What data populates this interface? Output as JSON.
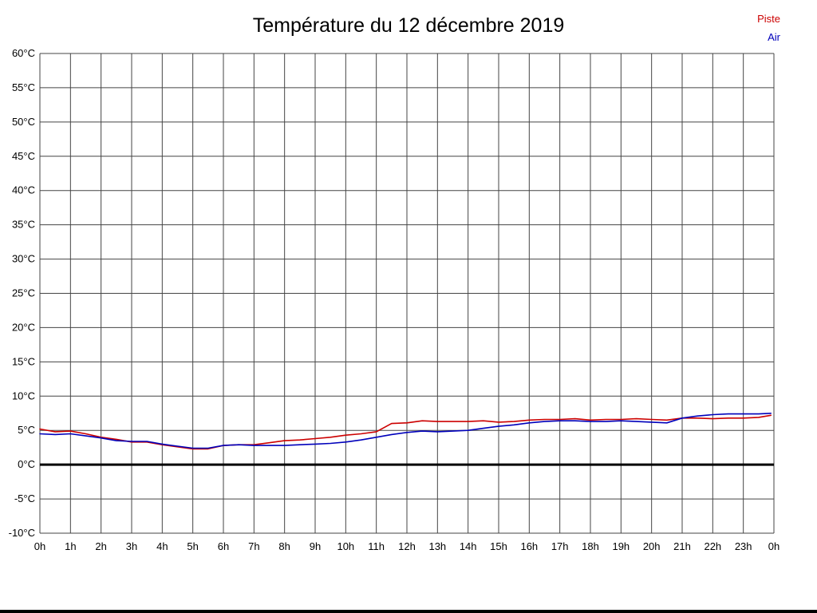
{
  "title": "Température du 12 décembre 2019",
  "legend": {
    "piste": "Piste",
    "air": "Air"
  },
  "colors": {
    "piste": "#cc0000",
    "air": "#0000bb",
    "grid": "#444444",
    "zero_line": "#000000",
    "text": "#000000"
  },
  "chart_data": {
    "type": "line",
    "title": "Température du 12 décembre 2019",
    "xlabel": "",
    "ylabel": "",
    "grid": true,
    "legend_position": "top-right",
    "xlim": [
      0,
      24
    ],
    "ylim": [
      -10,
      60
    ],
    "ytick_step": 5,
    "ytick_labels": [
      "60°C",
      "55°C",
      "50°C",
      "45°C",
      "40°C",
      "35°C",
      "30°C",
      "25°C",
      "20°C",
      "15°C",
      "10°C",
      "5°C",
      "0°C",
      "-5°C",
      "-10°C"
    ],
    "ytick_values": [
      60,
      55,
      50,
      45,
      40,
      35,
      30,
      25,
      20,
      15,
      10,
      5,
      0,
      -5,
      -10
    ],
    "xtick_labels": [
      "0h",
      "1h",
      "2h",
      "3h",
      "4h",
      "5h",
      "6h",
      "7h",
      "8h",
      "9h",
      "10h",
      "11h",
      "12h",
      "13h",
      "14h",
      "15h",
      "16h",
      "17h",
      "18h",
      "19h",
      "20h",
      "21h",
      "22h",
      "23h",
      "0h"
    ],
    "xtick_values": [
      0,
      1,
      2,
      3,
      4,
      5,
      6,
      7,
      8,
      9,
      10,
      11,
      12,
      13,
      14,
      15,
      16,
      17,
      18,
      19,
      20,
      21,
      22,
      23,
      24
    ],
    "zero_line": 0,
    "x": [
      0,
      0.5,
      1,
      1.5,
      2,
      2.5,
      3,
      3.5,
      4,
      4.5,
      5,
      5.5,
      6,
      6.5,
      7,
      7.5,
      8,
      8.5,
      9,
      9.5,
      10,
      10.5,
      11,
      11.5,
      12,
      12.5,
      13,
      13.5,
      14,
      14.5,
      15,
      15.5,
      16,
      16.5,
      17,
      17.5,
      18,
      18.5,
      19,
      19.5,
      20,
      20.5,
      21,
      21.5,
      22,
      22.5,
      23,
      23.5,
      23.9
    ],
    "series": [
      {
        "name": "Piste",
        "color": "#cc0000",
        "values": [
          5.2,
          4.8,
          4.9,
          4.5,
          4.0,
          3.7,
          3.3,
          3.3,
          2.9,
          2.6,
          2.3,
          2.3,
          2.8,
          2.9,
          2.9,
          3.2,
          3.5,
          3.6,
          3.8,
          4.0,
          4.3,
          4.5,
          4.8,
          6.0,
          6.1,
          6.4,
          6.3,
          6.3,
          6.3,
          6.4,
          6.2,
          6.3,
          6.5,
          6.6,
          6.6,
          6.7,
          6.5,
          6.6,
          6.6,
          6.7,
          6.6,
          6.5,
          6.8,
          6.8,
          6.7,
          6.8,
          6.8,
          6.9,
          7.2
        ]
      },
      {
        "name": "Air",
        "color": "#0000bb",
        "values": [
          4.5,
          4.4,
          4.5,
          4.2,
          3.9,
          3.5,
          3.4,
          3.4,
          3.0,
          2.7,
          2.4,
          2.4,
          2.8,
          2.9,
          2.8,
          2.8,
          2.8,
          2.9,
          3.0,
          3.1,
          3.3,
          3.6,
          4.0,
          4.4,
          4.7,
          4.9,
          4.8,
          4.9,
          5.0,
          5.3,
          5.6,
          5.8,
          6.1,
          6.3,
          6.4,
          6.4,
          6.3,
          6.3,
          6.4,
          6.3,
          6.2,
          6.1,
          6.8,
          7.1,
          7.3,
          7.4,
          7.4,
          7.4,
          7.5
        ]
      }
    ]
  }
}
